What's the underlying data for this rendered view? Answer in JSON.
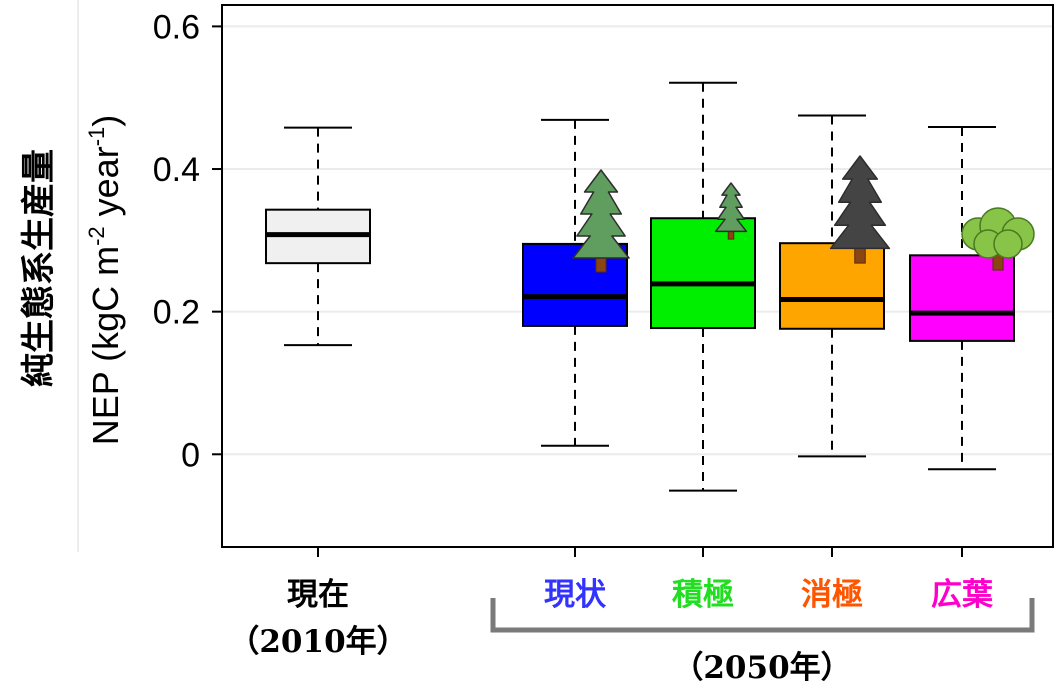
{
  "chart_data": {
    "type": "box",
    "ylabel": "NEP (kgC m^-2 year^-1)",
    "ylabel_parts": {
      "main_before_sup1": "NEP (kgC m",
      "sup1": "-2",
      "mid": " year",
      "sup2": "-1",
      "end": ")"
    },
    "ylabel_japanese": "純生態系生産量",
    "ylim": [
      -0.13,
      0.63
    ],
    "yticks": [
      0,
      0.2,
      0.4,
      0.6
    ],
    "ytick_labels": [
      "0",
      "0.2",
      "0.4",
      "0.6"
    ],
    "grid": true,
    "categories": [
      "現在",
      "現状",
      "積極",
      "消極",
      "広葉"
    ],
    "category_subtitles": [
      "（2010年）",
      "",
      "",
      "",
      ""
    ],
    "category_colors": [
      "#000000",
      "#3333ff",
      "#22dd22",
      "#ff5500",
      "#ff00cc"
    ],
    "group_label": "（2050年）",
    "boxes": [
      {
        "name": "現在",
        "whisker_low": 0.153,
        "q1": 0.268,
        "median": 0.308,
        "q3": 0.343,
        "whisker_high": 0.458,
        "fill": "#f0f0f0"
      },
      {
        "name": "現状",
        "whisker_low": 0.012,
        "q1": 0.18,
        "median": 0.221,
        "q3": 0.295,
        "whisker_high": 0.469,
        "fill": "#0000ff"
      },
      {
        "name": "積極",
        "whisker_low": -0.051,
        "q1": 0.177,
        "median": 0.239,
        "q3": 0.331,
        "whisker_high": 0.521,
        "fill": "#00ee00"
      },
      {
        "name": "消極",
        "whisker_low": -0.003,
        "q1": 0.176,
        "median": 0.217,
        "q3": 0.296,
        "whisker_high": 0.475,
        "fill": "#ffa500"
      },
      {
        "name": "広葉",
        "whisker_low": -0.021,
        "q1": 0.159,
        "median": 0.198,
        "q3": 0.279,
        "whisker_high": 0.459,
        "fill": "#ff00ff"
      }
    ],
    "tree_icons": [
      {
        "category": "現状",
        "kind": "conifer",
        "color": "#5f9e5f"
      },
      {
        "category": "積極",
        "kind": "conifer-small",
        "color": "#5f9e5f"
      },
      {
        "category": "消極",
        "kind": "conifer",
        "color": "#444444"
      },
      {
        "category": "広葉",
        "kind": "broadleaf",
        "color": "#88c448"
      }
    ]
  }
}
